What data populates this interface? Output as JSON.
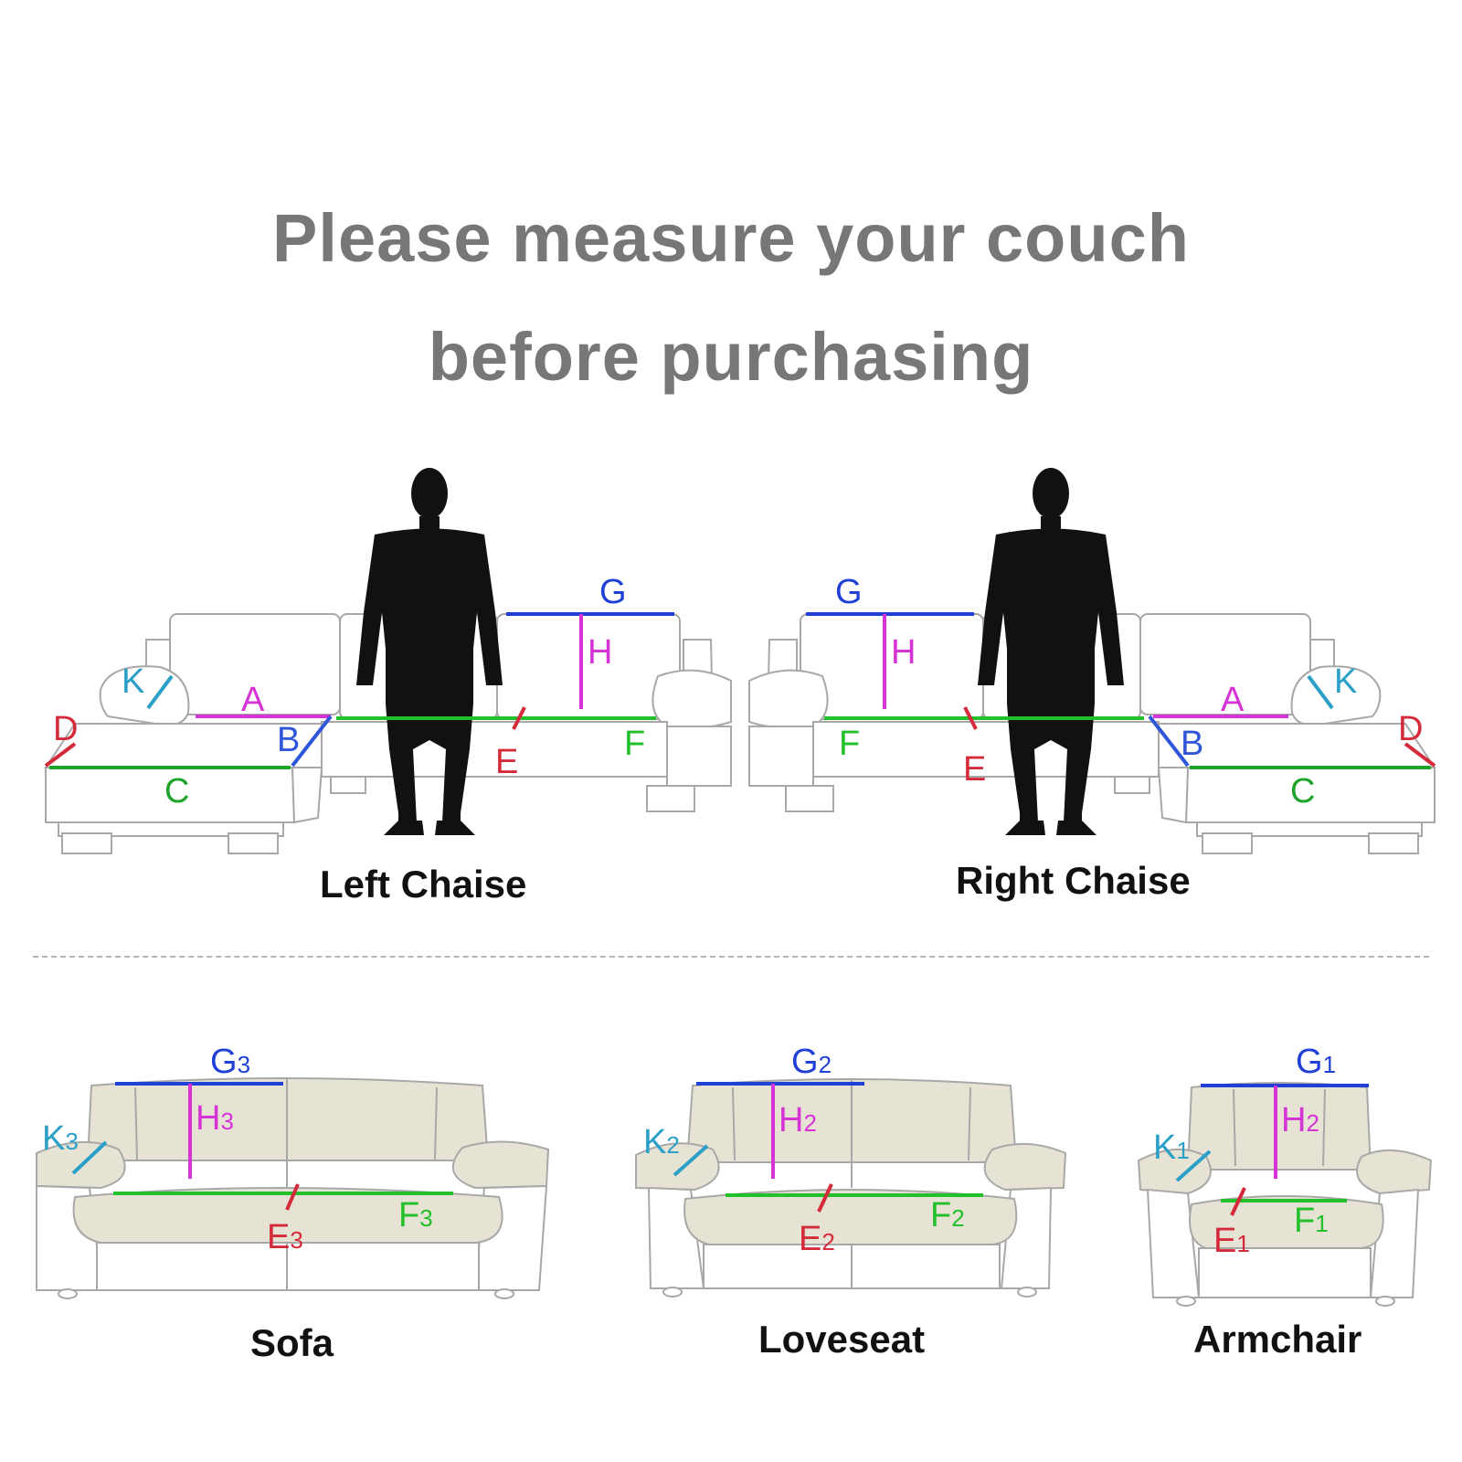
{
  "title": {
    "line1": "Please measure your couch",
    "line2": "before purchasing"
  },
  "diagrams": {
    "left_chaise": {
      "caption": "Left Chaise",
      "labels": {
        "g": "G",
        "h": "H",
        "k": "K",
        "a": "A",
        "d": "D",
        "b": "B",
        "c": "C",
        "e": "E",
        "f": "F"
      }
    },
    "right_chaise": {
      "caption": "Right Chaise",
      "labels": {
        "g": "G",
        "h": "H",
        "k": "K",
        "a": "A",
        "d": "D",
        "b": "B",
        "c": "C",
        "e": "E",
        "f": "F"
      }
    },
    "sofa": {
      "caption": "Sofa",
      "labels": {
        "g": "G",
        "g_sub": "3",
        "h": "H",
        "h_sub": "3",
        "k": "K",
        "k_sub": "3",
        "e": "E",
        "e_sub": "3",
        "f": "F",
        "f_sub": "3"
      }
    },
    "loveseat": {
      "caption": "Loveseat",
      "labels": {
        "g": "G",
        "g_sub": "2",
        "h": "H",
        "h_sub": "2",
        "k": "K",
        "k_sub": "2",
        "e": "E",
        "e_sub": "2",
        "f": "F",
        "f_sub": "2"
      }
    },
    "armchair": {
      "caption": "Armchair",
      "labels": {
        "g": "G",
        "g_sub": "1",
        "h": "H",
        "h_sub": "2",
        "k": "K",
        "k_sub": "1",
        "e": "E",
        "e_sub": "1",
        "f": "F",
        "f_sub": "1"
      }
    }
  },
  "colors": {
    "g": "#1f3fd6",
    "h": "#d633d6",
    "k": "#2aa0c8",
    "a": "#d633d6",
    "d": "#d42a3a",
    "b": "#2f55d8",
    "c": "#1fa32a",
    "e": "#d42a3a",
    "f": "#22c02a",
    "sofa_fill": "#e6e3d4",
    "outline": "#a8a8a8",
    "title": "#777777",
    "person": "#111111"
  }
}
